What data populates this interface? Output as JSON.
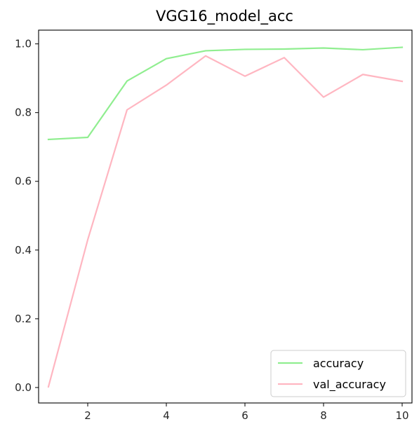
{
  "chart_data": {
    "type": "line",
    "title": "VGG16_model_acc",
    "xlabel": "",
    "ylabel": "",
    "x": [
      1,
      2,
      3,
      4,
      5,
      6,
      7,
      8,
      9,
      10
    ],
    "xlim": [
      0.75,
      10.25
    ],
    "ylim": [
      -0.045,
      1.04
    ],
    "xticks": [
      2,
      4,
      6,
      8,
      10
    ],
    "yticks": [
      0.0,
      0.2,
      0.4,
      0.6,
      0.8,
      1.0
    ],
    "xtick_labels": [
      "2",
      "4",
      "6",
      "8",
      "10"
    ],
    "ytick_labels": [
      "0.0",
      "0.2",
      "0.4",
      "0.6",
      "0.8",
      "1.0"
    ],
    "grid": false,
    "legend_position": "lower-right",
    "series": [
      {
        "name": "accuracy",
        "color": "#90ee90",
        "values": [
          0.722,
          0.728,
          0.892,
          0.957,
          0.98,
          0.984,
          0.985,
          0.988,
          0.983,
          0.99
        ]
      },
      {
        "name": "val_accuracy",
        "color": "#ffb6c1",
        "values": [
          0.002,
          0.43,
          0.808,
          0.88,
          0.965,
          0.906,
          0.96,
          0.845,
          0.911,
          0.891
        ]
      }
    ]
  }
}
